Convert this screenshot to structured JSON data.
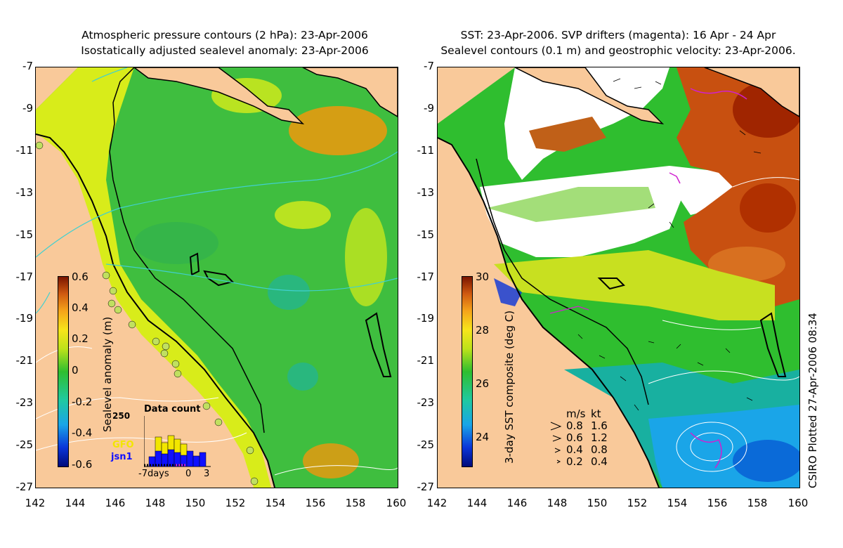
{
  "left_title_line1": "Atmospheric pressure contours (2 hPa): 23-Apr-2006",
  "left_title_line2": "Isostatically adjusted sealevel anomaly: 23-Apr-2006",
  "right_title_line1": "SST: 23-Apr-2006. SVP drifters (magenta): 16 Apr - 24 Apr",
  "right_title_line2": "Sealevel contours (0.1 m) and geostrophic velocity: 23-Apr-2006.",
  "axes": {
    "y_ticks": [
      "-7",
      "-9",
      "-11",
      "-13",
      "-15",
      "-17",
      "-19",
      "-21",
      "-23",
      "-25",
      "-27"
    ],
    "x_ticks": [
      "142",
      "144",
      "146",
      "148",
      "150",
      "152",
      "154",
      "156",
      "158",
      "160"
    ]
  },
  "left_colorbar": {
    "label": "Sealevel anomaly (m)",
    "ticks": [
      "0.6",
      "0.4",
      "0.2",
      "0",
      "-0.2",
      "-0.4",
      "-0.6"
    ]
  },
  "right_colorbar": {
    "label": "3-day SST composite (deg C)",
    "ticks": [
      "30",
      "28",
      "26",
      "24"
    ]
  },
  "data_count": {
    "title": "Data count",
    "ymax": "250",
    "series": [
      {
        "name": "GFO",
        "color": "#f2e600"
      },
      {
        "name": "jsn1",
        "color": "#1010ff"
      }
    ],
    "x_labels": [
      "-7days",
      "0",
      "3"
    ]
  },
  "velocity_legend": {
    "header_ms": "m/s",
    "header_kt": "kt",
    "rows": [
      {
        "ms": "0.8",
        "kt": "1.6"
      },
      {
        "ms": "0.6",
        "kt": "1.2"
      },
      {
        "ms": "0.4",
        "kt": "0.8"
      },
      {
        "ms": "0.2",
        "kt": "0.4"
      }
    ]
  },
  "credit": "CSIRO Plotted 27-Apr-2006 08:34",
  "colors": {
    "land": "#f9c99a",
    "sea_green": "#3fbe3f",
    "sea_yellow": "#d8ec1a",
    "warm": "#e59a10",
    "cool": "#1ab3a8",
    "drifter": "#d020d0",
    "pressure_contour": "#40d0d0"
  }
}
